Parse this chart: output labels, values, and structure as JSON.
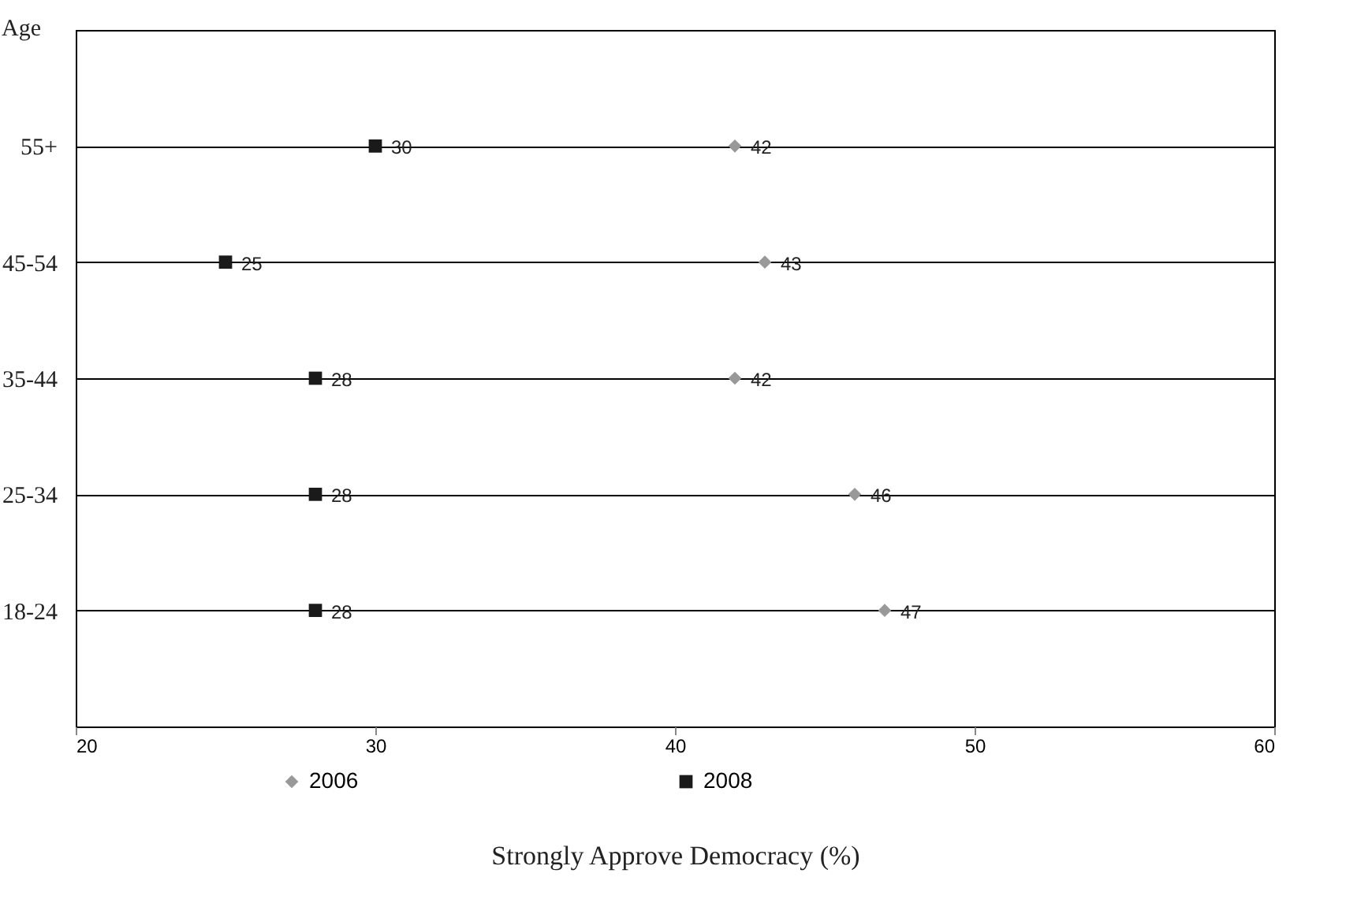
{
  "chart_data": {
    "type": "scatter",
    "orientation": "horizontal",
    "xlabel": "Strongly Approve Democracy (%)",
    "ylabel": "Age",
    "categories": [
      "55+",
      "45-54",
      "35-44",
      "25-34",
      "18-24"
    ],
    "series": [
      {
        "name": "2006",
        "color": "#999999",
        "marker": "diamond",
        "values": [
          42,
          43,
          42,
          46,
          47
        ]
      },
      {
        "name": "2008",
        "color": "#1a1a1a",
        "marker": "square",
        "values": [
          30,
          25,
          28,
          28,
          28
        ]
      }
    ],
    "xlim": [
      20,
      60
    ],
    "xticks": [
      20,
      30,
      40,
      50,
      60
    ],
    "grid": "y",
    "legend": "bottom",
    "data_labels": true
  }
}
